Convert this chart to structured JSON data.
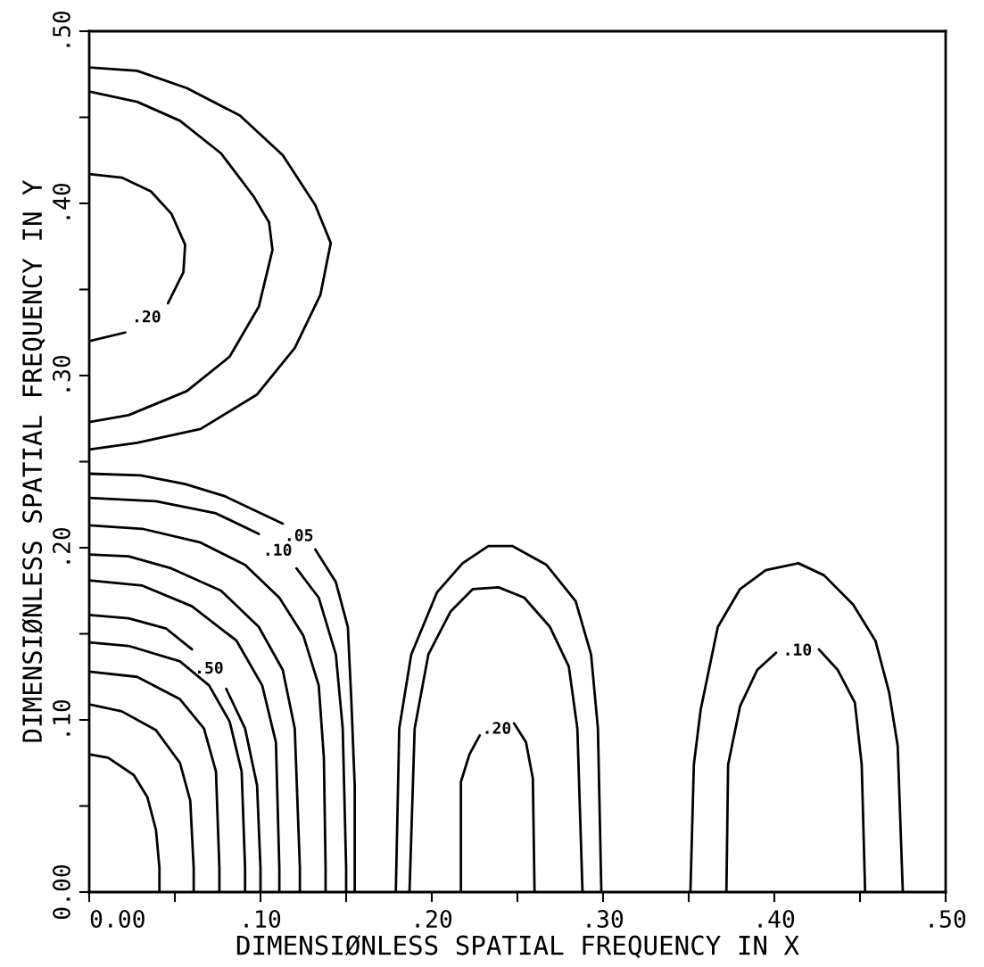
{
  "chart_data": {
    "type": "line",
    "xlabel": "DIMENSIØNLESS SPATIAL FREQUENCY IN X",
    "ylabel": "DIMENSIØNLESS SPATIAL FREQUENCY IN Y",
    "xlim": [
      0,
      0.5
    ],
    "ylim": [
      0,
      0.5
    ],
    "xticks": [
      {
        "value": 0,
        "label": "0.00"
      },
      {
        "value": 0.05,
        "label": null
      },
      {
        "value": 0.1,
        "label": ".10"
      },
      {
        "value": 0.15,
        "label": null
      },
      {
        "value": 0.2,
        "label": ".20"
      },
      {
        "value": 0.25,
        "label": null
      },
      {
        "value": 0.3,
        "label": ".30"
      },
      {
        "value": 0.35,
        "label": null
      },
      {
        "value": 0.4,
        "label": ".40"
      },
      {
        "value": 0.45,
        "label": null
      },
      {
        "value": 0.5,
        "label": ".50"
      }
    ],
    "yticks": [
      {
        "value": 0,
        "label": "0.00"
      },
      {
        "value": 0.05,
        "label": null
      },
      {
        "value": 0.1,
        "label": ".10"
      },
      {
        "value": 0.15,
        "label": null
      },
      {
        "value": 0.2,
        "label": ".20"
      },
      {
        "value": 0.25,
        "label": null
      },
      {
        "value": 0.3,
        "label": ".30"
      },
      {
        "value": 0.35,
        "label": null
      },
      {
        "value": 0.4,
        "label": ".40"
      },
      {
        "value": 0.45,
        "label": null
      },
      {
        "value": 0.5,
        "label": ".50"
      }
    ],
    "grid": false,
    "legend": false,
    "series": [
      {
        "color": "#000000",
        "x": [
          0,
          0.028,
          0.057,
          0.088,
          0.113,
          0.132,
          0.141,
          0.135,
          0.12,
          0.098,
          0.065,
          0.028,
          0
        ],
        "values": [
          0.479,
          0.477,
          0.467,
          0.451,
          0.428,
          0.399,
          0.377,
          0.347,
          0.316,
          0.289,
          0.269,
          0.261,
          0.257
        ]
      },
      {
        "color": "#000000",
        "x": [
          0,
          0.028,
          0.053,
          0.077,
          0.096,
          0.105,
          0.107,
          0.099,
          0.082,
          0.057,
          0.023,
          0
        ],
        "values": [
          0.465,
          0.459,
          0.448,
          0.429,
          0.404,
          0.389,
          0.373,
          0.34,
          0.311,
          0.291,
          0.277,
          0.273
        ]
      },
      {
        "color": "#000000",
        "x": [
          0,
          0.019,
          0.036,
          0.048,
          0.056,
          0.055,
          0.046
        ],
        "values": [
          0.417,
          0.415,
          0.407,
          0.394,
          0.376,
          0.36,
          0.342
        ]
      },
      {
        "color": "#000000",
        "x": [
          0.021,
          0
        ],
        "values": [
          0.325,
          0.32
        ]
      },
      {
        "color": "#000000",
        "x": [
          0,
          0.03,
          0.056,
          0.079,
          0.113
        ],
        "values": [
          0.243,
          0.242,
          0.237,
          0.23,
          0.214
        ]
      },
      {
        "color": "#000000",
        "x": [
          0.132,
          0.144,
          0.151,
          0.153,
          0.155,
          0.155
        ],
        "values": [
          0.199,
          0.18,
          0.154,
          0.112,
          0.062,
          0
        ]
      },
      {
        "color": "#000000",
        "x": [
          0,
          0.039,
          0.074,
          0.099
        ],
        "values": [
          0.229,
          0.227,
          0.22,
          0.208
        ]
      },
      {
        "color": "#000000",
        "x": [
          0.121,
          0.134,
          0.144,
          0.148,
          0.15,
          0.15
        ],
        "values": [
          0.188,
          0.171,
          0.138,
          0.095,
          0.014,
          0
        ]
      },
      {
        "color": "#000000",
        "x": [
          0,
          0.031,
          0.065,
          0.091,
          0.111,
          0.125,
          0.134,
          0.137,
          0.138,
          0.138
        ],
        "values": [
          0.213,
          0.211,
          0.203,
          0.19,
          0.171,
          0.149,
          0.12,
          0.078,
          0.014,
          0
        ]
      },
      {
        "color": "#000000",
        "x": [
          0,
          0.023,
          0.048,
          0.077,
          0.099,
          0.113,
          0.12,
          0.123,
          0.123
        ],
        "values": [
          0.196,
          0.195,
          0.188,
          0.175,
          0.154,
          0.129,
          0.095,
          0.014,
          0
        ]
      },
      {
        "color": "#000000",
        "x": [
          0,
          0.031,
          0.06,
          0.086,
          0.101,
          0.109,
          0.111,
          0.111
        ],
        "values": [
          0.181,
          0.178,
          0.166,
          0.146,
          0.12,
          0.087,
          0.014,
          0
        ]
      },
      {
        "color": "#000000",
        "x": [
          0,
          0.023,
          0.045,
          0.06
        ],
        "values": [
          0.161,
          0.159,
          0.153,
          0.141
        ]
      },
      {
        "color": "#000000",
        "x": [
          0.08,
          0.091,
          0.098,
          0.1,
          0.1
        ],
        "values": [
          0.118,
          0.095,
          0.062,
          0.014,
          0
        ]
      },
      {
        "color": "#000000",
        "x": [
          0,
          0.023,
          0.053,
          0.07,
          0.082,
          0.089,
          0.091,
          0.091
        ],
        "values": [
          0.145,
          0.143,
          0.134,
          0.12,
          0.099,
          0.07,
          0.014,
          0
        ]
      },
      {
        "color": "#000000",
        "x": [
          0,
          0.028,
          0.053,
          0.067,
          0.074,
          0.076,
          0.076
        ],
        "values": [
          0.128,
          0.125,
          0.112,
          0.095,
          0.07,
          0.014,
          0
        ]
      },
      {
        "color": "#000000",
        "x": [
          0,
          0.019,
          0.039,
          0.053,
          0.059,
          0.061,
          0.061
        ],
        "values": [
          0.109,
          0.105,
          0.094,
          0.075,
          0.053,
          0.014,
          0
        ]
      },
      {
        "color": "#000000",
        "x": [
          0,
          0.011,
          0.026,
          0.034,
          0.039,
          0.041,
          0.041
        ],
        "values": [
          0.08,
          0.078,
          0.068,
          0.055,
          0.036,
          0.014,
          0
        ]
      },
      {
        "color": "#000000",
        "x": [
          0.179,
          0.181,
          0.188,
          0.203,
          0.218,
          0.233,
          0.247,
          0.267,
          0.284,
          0.293,
          0.297,
          0.299
        ],
        "values": [
          0,
          0.095,
          0.138,
          0.174,
          0.191,
          0.201,
          0.201,
          0.19,
          0.169,
          0.138,
          0.095,
          0
        ]
      },
      {
        "color": "#000000",
        "x": [
          0.187,
          0.19,
          0.198,
          0.211,
          0.224,
          0.239,
          0.254,
          0.269,
          0.28,
          0.285,
          0.288
        ],
        "values": [
          0,
          0.095,
          0.138,
          0.163,
          0.176,
          0.177,
          0.171,
          0.154,
          0.131,
          0.095,
          0
        ]
      },
      {
        "color": "#000000",
        "x": [
          0.217,
          0.217,
          0.222,
          0.228
        ],
        "values": [
          0,
          0.064,
          0.08,
          0.091
        ]
      },
      {
        "color": "#000000",
        "x": [
          0.248,
          0.255,
          0.259,
          0.26
        ],
        "values": [
          0.098,
          0.087,
          0.066,
          0
        ]
      },
      {
        "color": "#000000",
        "x": [
          0.351,
          0.353,
          0.357,
          0.367,
          0.38,
          0.395,
          0.414,
          0.429,
          0.446,
          0.459,
          0.467,
          0.472,
          0.475
        ],
        "values": [
          0,
          0.074,
          0.106,
          0.154,
          0.176,
          0.187,
          0.191,
          0.184,
          0.167,
          0.146,
          0.116,
          0.085,
          0
        ]
      },
      {
        "color": "#000000",
        "x": [
          0.372,
          0.373,
          0.38,
          0.39,
          0.401
        ],
        "values": [
          0,
          0.074,
          0.108,
          0.129,
          0.139
        ]
      },
      {
        "color": "#000000",
        "x": [
          0.426,
          0.437,
          0.447,
          0.451,
          0.453
        ],
        "values": [
          0.141,
          0.129,
          0.11,
          0.074,
          0
        ]
      }
    ],
    "annotations": [
      ".20",
      ".05",
      ".10",
      ".50",
      ".20",
      ".10"
    ]
  }
}
